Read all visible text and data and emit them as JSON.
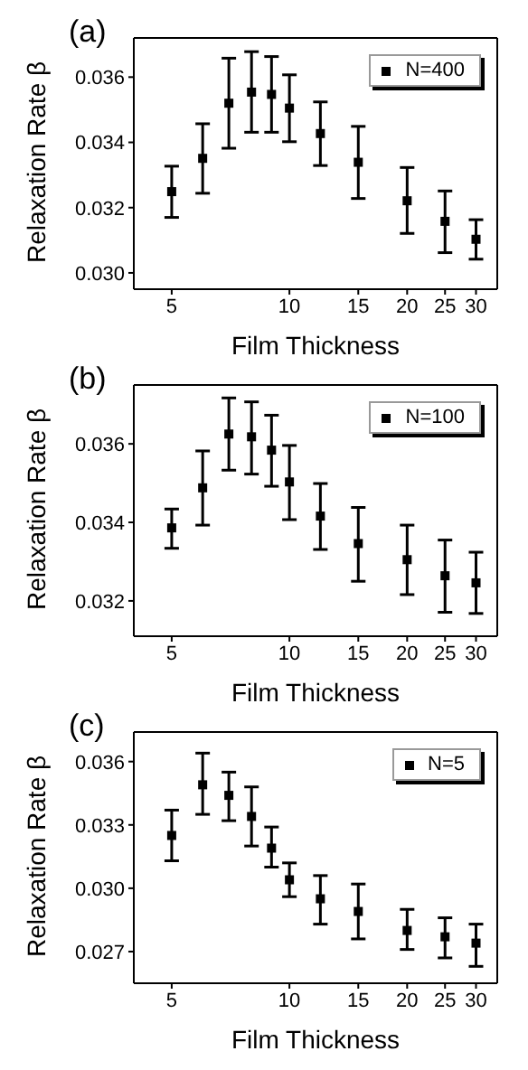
{
  "chart_data": [
    {
      "type": "scatter",
      "annotations": [
        "(a)"
      ],
      "xlabel": "Film Thickness",
      "ylabel": "Relaxation Rate β",
      "log": "x",
      "x": [
        5,
        6,
        7,
        8,
        9,
        10,
        12,
        15,
        20,
        25,
        30
      ],
      "xlim": [
        4,
        34
      ],
      "xticks": [
        5,
        10,
        15,
        20,
        25,
        30
      ],
      "ylim": [
        0.0295,
        0.0372
      ],
      "yticks": [
        {
          "value": 0.03,
          "label": "0.030"
        },
        0.032,
        0.034,
        0.036
      ],
      "legend": "top right",
      "marker": "square",
      "series": [
        {
          "name": "N=400",
          "color": "#000000",
          "values": [
            0.03249,
            0.03351,
            0.0352,
            0.03554,
            0.03547,
            0.03505,
            0.03427,
            0.03339,
            0.03221,
            0.03158,
            0.03103
          ],
          "errors": [
            [
              0.0317,
              0.03327
            ],
            [
              0.03244,
              0.03457
            ],
            [
              0.03382,
              0.03658
            ],
            [
              0.03431,
              0.03678
            ],
            [
              0.03431,
              0.03663
            ],
            [
              0.03402,
              0.03607
            ],
            [
              0.03329,
              0.03524
            ],
            [
              0.03228,
              0.03449
            ],
            [
              0.03121,
              0.03323
            ],
            [
              0.03062,
              0.03251
            ],
            [
              0.03042,
              0.03163
            ]
          ]
        }
      ]
    },
    {
      "type": "scatter",
      "annotations": [
        "(b)"
      ],
      "xlabel": "Film Thickness",
      "ylabel": "Relaxation Rate β",
      "log": "x",
      "x": [
        5,
        6,
        7,
        8,
        9,
        10,
        12,
        15,
        20,
        25,
        30
      ],
      "xlim": [
        4,
        34
      ],
      "xticks": [
        5,
        10,
        15,
        20,
        25,
        30
      ],
      "ylim": [
        0.0311,
        0.0375
      ],
      "yticks": [
        0.032,
        0.034,
        0.036
      ],
      "legend": "top right",
      "marker": "square",
      "series": [
        {
          "name": "N=100",
          "color": "#000000",
          "values": [
            0.03386,
            0.03488,
            0.03625,
            0.03618,
            0.03584,
            0.03503,
            0.03416,
            0.03346,
            0.03305,
            0.03264,
            0.03246
          ],
          "errors": [
            [
              0.03334,
              0.03434
            ],
            [
              0.03393,
              0.03582
            ],
            [
              0.03533,
              0.03717
            ],
            [
              0.03523,
              0.03707
            ],
            [
              0.03492,
              0.03673
            ],
            [
              0.03407,
              0.03596
            ],
            [
              0.03331,
              0.03499
            ],
            [
              0.0325,
              0.03438
            ],
            [
              0.03216,
              0.03393
            ],
            [
              0.03171,
              0.03355
            ],
            [
              0.03168,
              0.03324
            ]
          ]
        }
      ]
    },
    {
      "type": "scatter",
      "annotations": [
        "(c)"
      ],
      "xlabel": "Film Thickness",
      "ylabel": "Relaxation Rate β",
      "log": "x",
      "x": [
        5,
        6,
        7,
        8,
        9,
        10,
        12,
        15,
        20,
        25,
        30
      ],
      "xlim": [
        4,
        34
      ],
      "xticks": [
        5,
        10,
        15,
        20,
        25,
        30
      ],
      "ylim": [
        0.0255,
        0.0374
      ],
      "yticks": [
        {
          "value": 0.027,
          "label": "0.027"
        },
        {
          "value": 0.03,
          "label": "0.030"
        },
        {
          "value": 0.033,
          "label": "0.033"
        },
        {
          "value": 0.036,
          "label": "0.036"
        }
      ],
      "legend": "top right",
      "marker": "square",
      "series": [
        {
          "name": "N=5",
          "color": "#000000",
          "values": [
            0.0325,
            0.0349,
            0.0344,
            0.0334,
            0.0319,
            0.0304,
            0.0295,
            0.0289,
            0.028,
            0.0277,
            0.0274
          ],
          "errors": [
            [
              0.0313,
              0.0337
            ],
            [
              0.0335,
              0.0364
            ],
            [
              0.0332,
              0.0355
            ],
            [
              0.032,
              0.0348
            ],
            [
              0.031,
              0.0329
            ],
            [
              0.0296,
              0.0312
            ],
            [
              0.0283,
              0.0306
            ],
            [
              0.0276,
              0.0302
            ],
            [
              0.0271,
              0.029
            ],
            [
              0.0267,
              0.0286
            ],
            [
              0.0263,
              0.0283
            ]
          ]
        }
      ]
    }
  ]
}
